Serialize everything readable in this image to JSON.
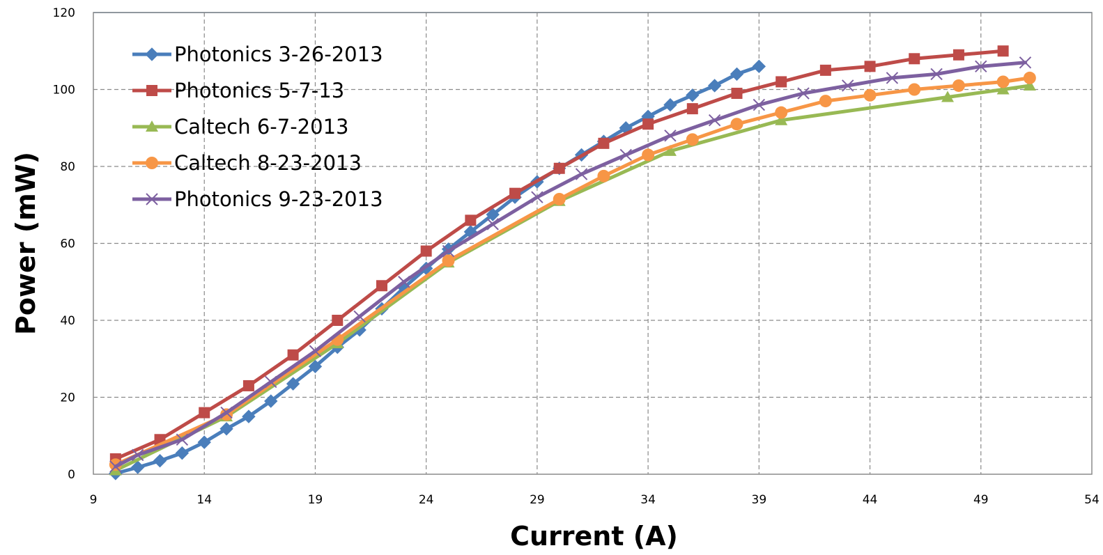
{
  "chart_data": {
    "type": "line",
    "title": "",
    "xlabel": "Current (A)",
    "ylabel": "Power (mW)",
    "xlim": [
      9,
      54
    ],
    "ylim": [
      0,
      120
    ],
    "xticks": [
      9,
      14,
      19,
      24,
      29,
      34,
      39,
      44,
      49,
      54
    ],
    "yticks": [
      0,
      20,
      40,
      60,
      80,
      100,
      120
    ],
    "grid": true,
    "legend_position": "top-left",
    "series": [
      {
        "name": "Photonics 3-26-2013",
        "color": "#4a7ebb",
        "marker": "diamond",
        "points": [
          [
            10,
            0.2
          ],
          [
            11,
            1.8
          ],
          [
            12,
            3.5
          ],
          [
            13,
            5.5
          ],
          [
            14,
            8.3
          ],
          [
            15,
            11.8
          ],
          [
            16,
            15
          ],
          [
            17,
            19
          ],
          [
            18,
            23.5
          ],
          [
            19,
            28
          ],
          [
            20,
            33
          ],
          [
            21,
            37.5
          ],
          [
            22,
            43
          ],
          [
            23,
            48.5
          ],
          [
            24,
            53.5
          ],
          [
            25,
            58.5
          ],
          [
            26,
            63
          ],
          [
            27,
            67.5
          ],
          [
            28,
            72
          ],
          [
            29,
            76
          ],
          [
            30,
            79.5
          ],
          [
            31,
            83
          ],
          [
            32,
            86.5
          ],
          [
            33,
            90
          ],
          [
            34,
            93
          ],
          [
            35,
            96
          ],
          [
            36,
            98.5
          ],
          [
            37,
            101
          ],
          [
            38,
            104
          ],
          [
            39,
            106
          ]
        ]
      },
      {
        "name": "Photonics 5-7-13",
        "color": "#be4b48",
        "marker": "square",
        "points": [
          [
            10,
            4
          ],
          [
            12,
            9
          ],
          [
            14,
            16
          ],
          [
            16,
            23
          ],
          [
            18,
            31
          ],
          [
            20,
            40
          ],
          [
            22,
            49
          ],
          [
            24,
            58
          ],
          [
            26,
            66
          ],
          [
            28,
            73
          ],
          [
            30,
            79.5
          ],
          [
            32,
            86
          ],
          [
            34,
            91
          ],
          [
            36,
            95
          ],
          [
            38,
            99
          ],
          [
            40,
            102
          ],
          [
            42,
            105
          ],
          [
            44,
            106
          ],
          [
            46,
            108
          ],
          [
            48,
            109
          ],
          [
            50,
            110
          ]
        ]
      },
      {
        "name": "Caltech 6-7-2013",
        "color": "#98b954",
        "marker": "triangle",
        "points": [
          [
            10,
            1
          ],
          [
            15,
            15
          ],
          [
            20,
            34
          ],
          [
            25,
            55
          ],
          [
            30,
            71
          ],
          [
            35,
            84
          ],
          [
            40,
            92
          ],
          [
            47.5,
            98
          ],
          [
            50,
            100
          ],
          [
            51.2,
            101
          ]
        ]
      },
      {
        "name": "Caltech 8-23-2013",
        "color": "#f79646",
        "marker": "circle",
        "points": [
          [
            10,
            2.5
          ],
          [
            15,
            15.5
          ],
          [
            20,
            35
          ],
          [
            25,
            55.5
          ],
          [
            30,
            71.5
          ],
          [
            32,
            77.5
          ],
          [
            34,
            83
          ],
          [
            36,
            87
          ],
          [
            38,
            91
          ],
          [
            40,
            94
          ],
          [
            42,
            97
          ],
          [
            44,
            98.5
          ],
          [
            46,
            100
          ],
          [
            48,
            101
          ],
          [
            50,
            102
          ],
          [
            51.2,
            103
          ]
        ]
      },
      {
        "name": "Photonics 9-23-2013",
        "color": "#7d60a0",
        "marker": "x",
        "points": [
          [
            10,
            2
          ],
          [
            11,
            5
          ],
          [
            13,
            9
          ],
          [
            15,
            16
          ],
          [
            17,
            24
          ],
          [
            19,
            32
          ],
          [
            21,
            41
          ],
          [
            23,
            50
          ],
          [
            25,
            58
          ],
          [
            27,
            65
          ],
          [
            29,
            72
          ],
          [
            31,
            78
          ],
          [
            33,
            83
          ],
          [
            35,
            88
          ],
          [
            37,
            92
          ],
          [
            39,
            96
          ],
          [
            41,
            99
          ],
          [
            43,
            101
          ],
          [
            45,
            103
          ],
          [
            47,
            104
          ],
          [
            49,
            106
          ],
          [
            51,
            107
          ]
        ]
      }
    ]
  }
}
